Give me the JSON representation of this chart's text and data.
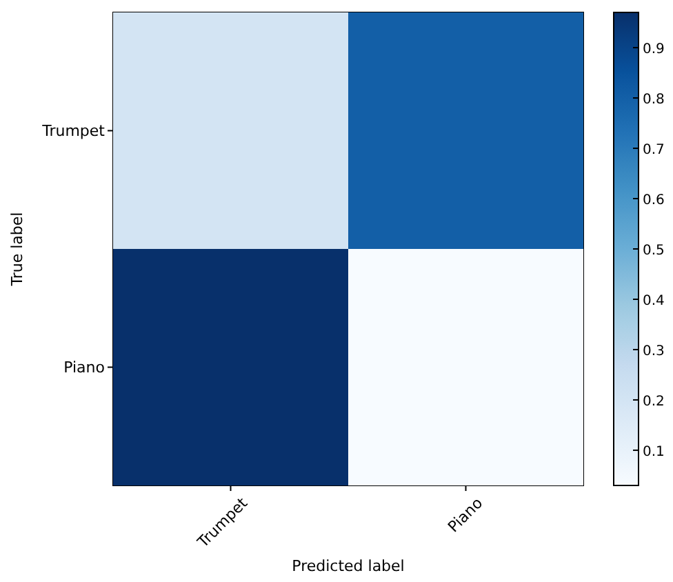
{
  "chart_data": {
    "type": "heatmap",
    "xlabel": "Predicted label",
    "ylabel": "True label",
    "categories": [
      "Trumpet",
      "Piano"
    ],
    "y_categories": [
      "Trumpet",
      "Piano"
    ],
    "cells": [
      [
        0.2,
        0.8
      ],
      [
        0.97,
        0.03
      ]
    ],
    "clim": [
      0.03,
      0.97
    ],
    "cticks": [
      0.1,
      0.2,
      0.3,
      0.4,
      0.5,
      0.6,
      0.7,
      0.8,
      0.9
    ]
  }
}
